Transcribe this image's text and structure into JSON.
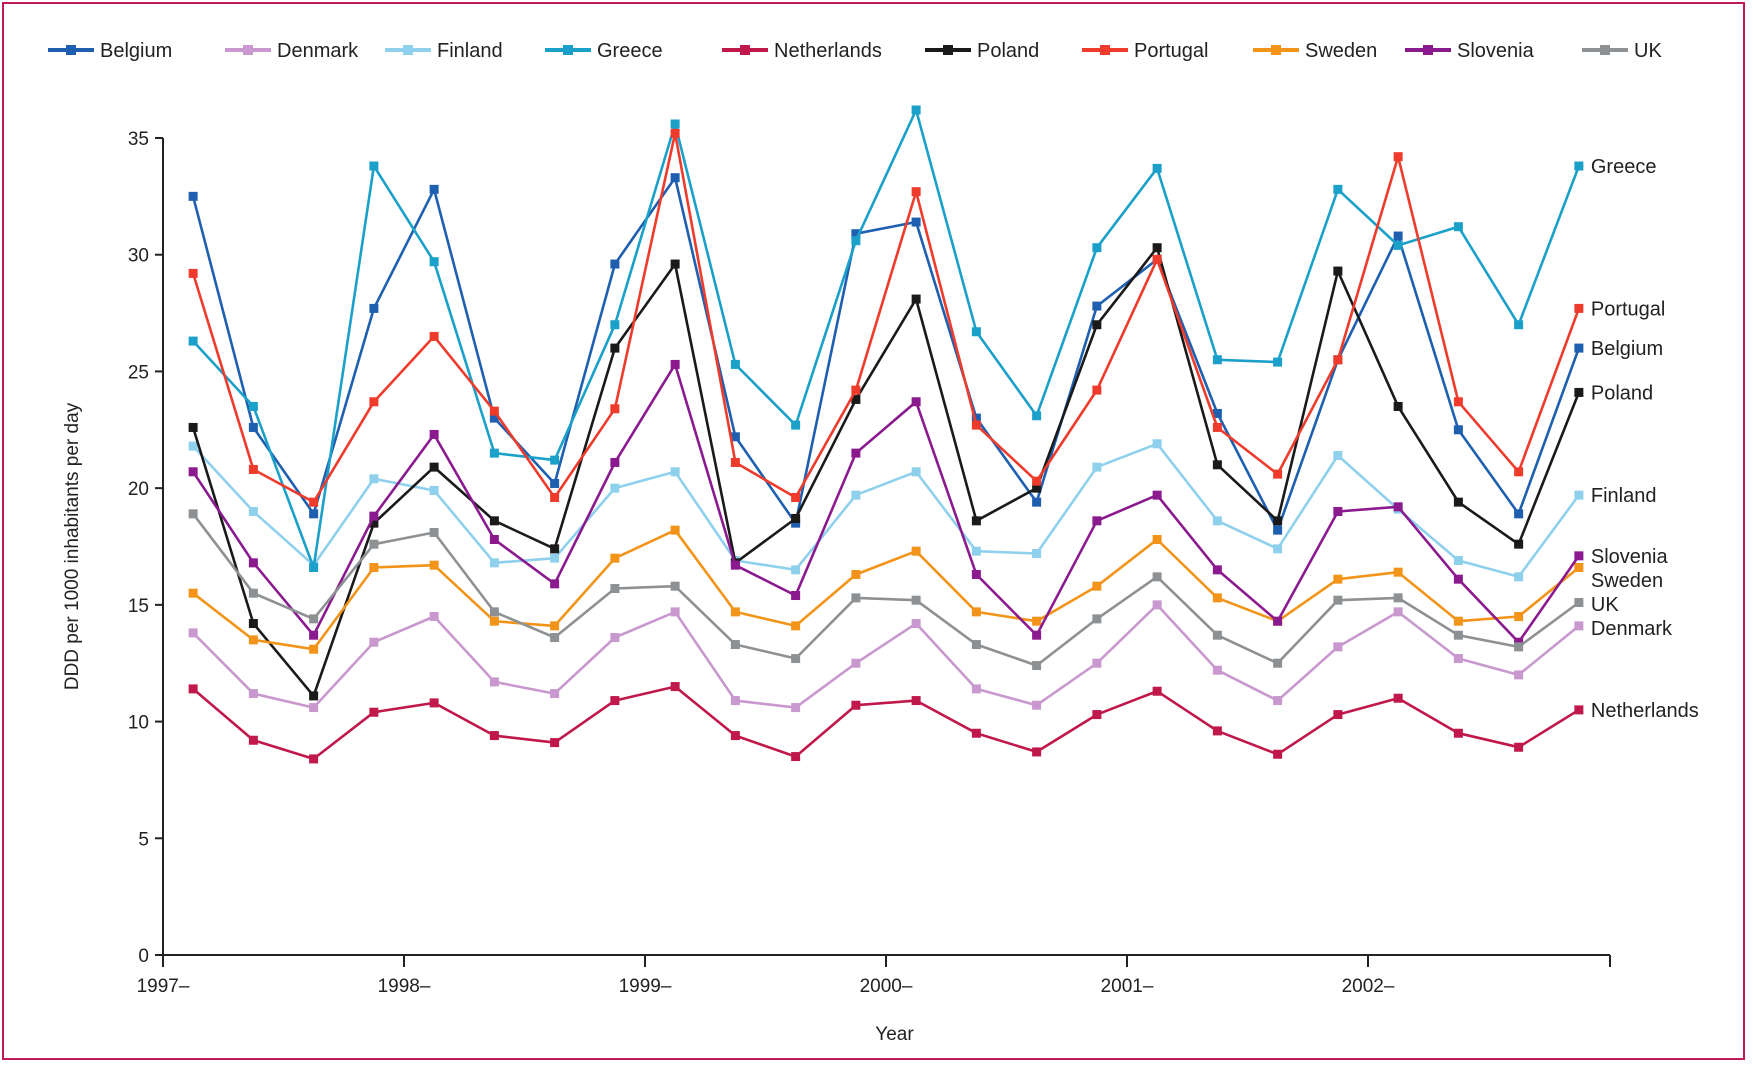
{
  "chart_data": {
    "type": "line",
    "xlabel": "Year",
    "ylabel": "DDD per 1000 inhabitants per day",
    "ylim": [
      0,
      35
    ],
    "yticks": [
      0,
      5,
      10,
      15,
      20,
      25,
      30,
      35
    ],
    "xlim": [
      1997,
      2003
    ],
    "xticks": [
      {
        "value": 1997,
        "label": "1997–"
      },
      {
        "value": 1998,
        "label": "1998–"
      },
      {
        "value": 1999,
        "label": "1999–"
      },
      {
        "value": 2000,
        "label": "2000–"
      },
      {
        "value": 2001,
        "label": "2001–"
      },
      {
        "value": 2002,
        "label": "2002–"
      }
    ],
    "x": [
      1997.125,
      1997.375,
      1997.625,
      1997.875,
      1998.125,
      1998.375,
      1998.625,
      1998.875,
      1999.125,
      1999.375,
      1999.625,
      1999.875,
      2000.125,
      2000.375,
      2000.625,
      2000.875,
      2001.125,
      2001.375,
      2001.625,
      2001.875,
      2002.125,
      2002.375,
      2002.625,
      2002.875
    ],
    "grid": false,
    "legend_position": "top",
    "series": [
      {
        "name": "Belgium",
        "color": "#1f5fb0",
        "end_label": "Belgium",
        "values": [
          32.5,
          22.6,
          18.9,
          27.7,
          32.8,
          23.0,
          20.2,
          29.6,
          33.3,
          22.2,
          18.5,
          30.9,
          31.4,
          23.0,
          19.4,
          27.8,
          29.8,
          23.2,
          18.2,
          25.5,
          30.8,
          22.5,
          18.9,
          26.0
        ]
      },
      {
        "name": "Denmark",
        "color": "#c898cf",
        "end_label": "Denmark",
        "values": [
          13.8,
          11.2,
          10.6,
          13.4,
          14.5,
          11.7,
          11.2,
          13.6,
          14.7,
          10.9,
          10.6,
          12.5,
          14.2,
          11.4,
          10.7,
          12.5,
          15.0,
          12.2,
          10.9,
          13.2,
          14.7,
          12.7,
          12.0,
          14.1
        ]
      },
      {
        "name": "Finland",
        "color": "#8fd0ec",
        "end_label": "Finland",
        "values": [
          21.8,
          19.0,
          16.7,
          20.4,
          19.9,
          16.8,
          17.0,
          20.0,
          20.7,
          16.9,
          16.5,
          19.7,
          20.7,
          17.3,
          17.2,
          20.9,
          21.9,
          18.6,
          17.4,
          21.4,
          19.1,
          16.9,
          16.2,
          19.7
        ]
      },
      {
        "name": "Greece",
        "color": "#1aa0c9",
        "end_label": "Greece",
        "values": [
          26.3,
          23.5,
          16.6,
          33.8,
          29.7,
          21.5,
          21.2,
          27.0,
          35.6,
          25.3,
          22.7,
          30.6,
          36.2,
          26.7,
          23.1,
          30.3,
          33.7,
          25.5,
          25.4,
          32.8,
          30.4,
          31.2,
          27.0,
          33.8
        ]
      },
      {
        "name": "Netherlands",
        "color": "#c0184a",
        "end_label": "Netherlands",
        "values": [
          11.4,
          9.2,
          8.4,
          10.4,
          10.8,
          9.4,
          9.1,
          10.9,
          11.5,
          9.4,
          8.5,
          10.7,
          10.9,
          9.5,
          8.7,
          10.3,
          11.3,
          9.6,
          8.6,
          10.3,
          11.0,
          9.5,
          8.9,
          10.5
        ]
      },
      {
        "name": "Poland",
        "color": "#1a1a1a",
        "end_label": "Poland",
        "values": [
          22.6,
          14.2,
          11.1,
          18.5,
          20.9,
          18.6,
          17.4,
          26.0,
          29.6,
          16.8,
          18.7,
          23.8,
          28.1,
          18.6,
          20.0,
          27.0,
          30.3,
          21.0,
          18.6,
          29.3,
          23.5,
          19.4,
          17.6,
          24.1
        ]
      },
      {
        "name": "Portugal",
        "color": "#ef3b2c",
        "end_label": "Portugal",
        "values": [
          29.2,
          20.8,
          19.4,
          23.7,
          26.5,
          23.3,
          19.6,
          23.4,
          35.2,
          21.1,
          19.6,
          24.2,
          32.7,
          22.7,
          20.3,
          24.2,
          29.8,
          22.6,
          20.6,
          25.5,
          34.2,
          23.7,
          20.7,
          27.7
        ]
      },
      {
        "name": "Sweden",
        "color": "#f29419",
        "end_label": "Sweden",
        "values": [
          15.5,
          13.5,
          13.1,
          16.6,
          16.7,
          14.3,
          14.1,
          17.0,
          18.2,
          14.7,
          14.1,
          16.3,
          17.3,
          14.7,
          14.3,
          15.8,
          17.8,
          15.3,
          14.3,
          16.1,
          16.4,
          14.3,
          14.5,
          16.6
        ]
      },
      {
        "name": "Slovenia",
        "color": "#8b1a8f",
        "end_label": "Slovenia",
        "values": [
          20.7,
          16.8,
          13.7,
          18.8,
          22.3,
          17.8,
          15.9,
          21.1,
          25.3,
          16.7,
          15.4,
          21.5,
          23.7,
          16.3,
          13.7,
          18.6,
          19.7,
          16.5,
          14.3,
          19.0,
          19.2,
          16.1,
          13.4,
          17.1
        ]
      },
      {
        "name": "UK",
        "color": "#8e9193",
        "end_label": "UK",
        "values": [
          18.9,
          15.5,
          14.4,
          17.6,
          18.1,
          14.7,
          13.6,
          15.7,
          15.8,
          13.3,
          12.7,
          15.3,
          15.2,
          13.3,
          12.4,
          14.4,
          16.2,
          13.7,
          12.5,
          15.2,
          15.3,
          13.7,
          13.2,
          15.1
        ]
      }
    ]
  }
}
